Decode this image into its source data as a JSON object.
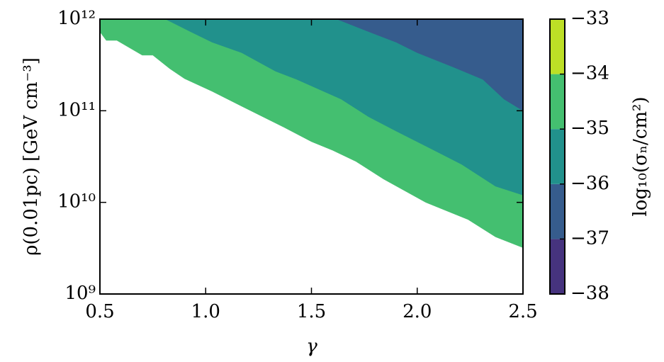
{
  "chart_data": {
    "type": "contourf",
    "xlabel": "γ",
    "ylabel": "ρ(0.01pc) [GeV cm⁻³]",
    "xlim": [
      0.5,
      2.5
    ],
    "xticks": [
      0.5,
      {
        "value": 1,
        "label": "1.0"
      },
      1.5,
      {
        "value": 2,
        "label": "2.0"
      },
      2.5
    ],
    "ylim": [
      1000000000.0,
      1000000000000.0
    ],
    "log_y": true,
    "yticks": [
      {
        "value": 1000000000.0,
        "label": "10⁹"
      },
      {
        "value": 10000000000.0,
        "label": "10¹⁰"
      },
      {
        "value": 100000000000.0,
        "label": "10¹¹"
      },
      {
        "value": 1000000000000.0,
        "label": "10¹²"
      }
    ],
    "contours": [
      {
        "level": -35,
        "color": "#44bf70",
        "x": [
          0.5,
          0.53,
          0.58,
          0.7,
          0.75,
          0.83,
          0.9,
          1.03,
          1.17,
          1.37,
          1.5,
          1.6,
          1.71,
          1.84,
          2.04,
          2.24,
          2.37,
          2.5
        ],
        "y": [
          726000000000.0,
          586000000000.0,
          586000000000.0,
          404000000000.0,
          404000000000.0,
          288000000000.0,
          224000000000.0,
          163000000000.0,
          112000000000.0,
          66000000000.0,
          46000000000.0,
          37000000000.0,
          28000000000.0,
          18000000000.0,
          10000000000.0,
          6500000000.0,
          4200000000.0,
          3200000000.0
        ]
      },
      {
        "level": -36,
        "color": "#21918c",
        "x": [
          0.81,
          0.93,
          1.03,
          1.17,
          1.33,
          1.43,
          1.64,
          1.77,
          1.9,
          2.07,
          2.21,
          2.37,
          2.5
        ],
        "y": [
          1000000000000.0,
          726000000000.0,
          560000000000.0,
          430000000000.0,
          270000000000.0,
          220000000000.0,
          134000000000.0,
          86000000000.0,
          60000000000.0,
          38000000000.0,
          26000000000.0,
          15000000000.0,
          12000000000.0
        ]
      },
      {
        "level": -37,
        "color": "#365c8d",
        "x": [
          1.62,
          1.77,
          1.9,
          2.0,
          2.17,
          2.31,
          2.41,
          2.5
        ],
        "y": [
          1000000000000.0,
          730000000000.0,
          560000000000.0,
          430000000000.0,
          300000000000.0,
          220000000000.0,
          134000000000.0,
          100000000000.0
        ]
      }
    ],
    "colorbar": {
      "label": "log₁₀(σₙ/cm²)",
      "lim": [
        -38,
        -33
      ],
      "levels": [
        -38,
        -37,
        -36,
        -35,
        -34,
        -33
      ],
      "colors": [
        "#46337e",
        "#365c8d",
        "#21918c",
        "#44bf70",
        "#bddf26"
      ],
      "ticks": [
        {
          "value": -38,
          "label": "−38"
        },
        {
          "value": -37,
          "label": "−37"
        },
        {
          "value": -36,
          "label": "−36"
        },
        {
          "value": -35,
          "label": "−35"
        },
        {
          "value": -34,
          "label": "−34"
        },
        {
          "value": -33,
          "label": "−33"
        }
      ]
    }
  }
}
